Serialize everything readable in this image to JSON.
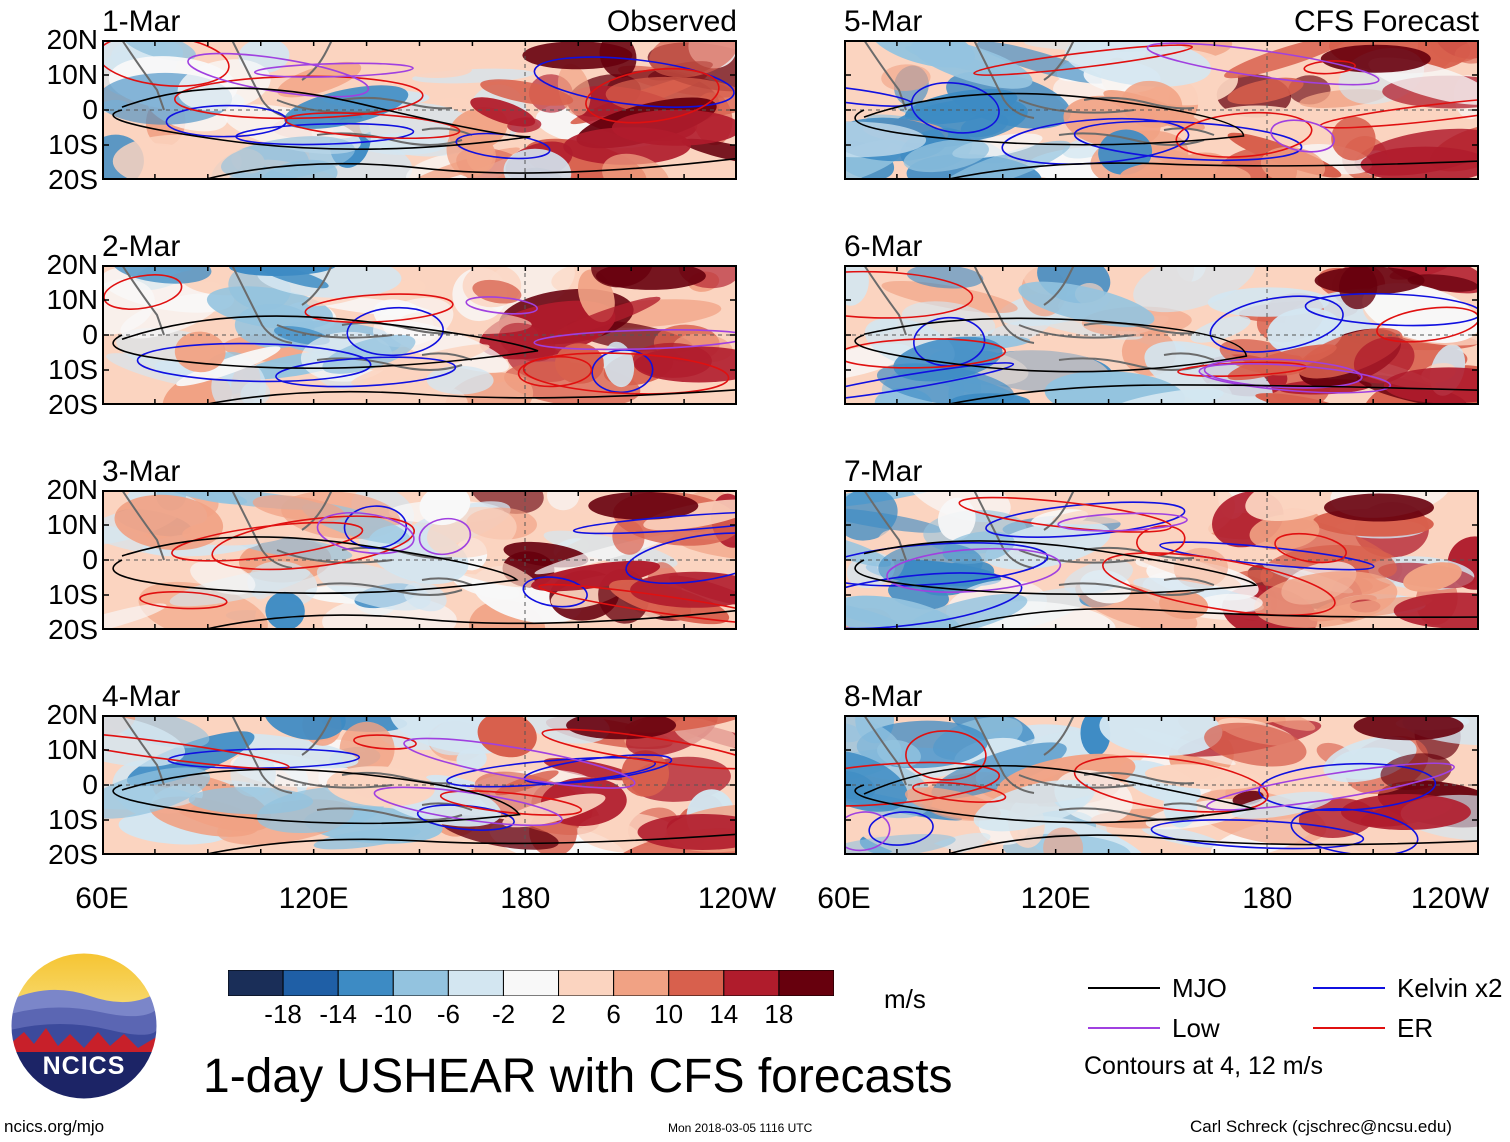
{
  "panels": [
    {
      "date": "1-Mar",
      "corner": "Observed",
      "col": 0,
      "row": 0,
      "seed": 11
    },
    {
      "date": "2-Mar",
      "corner": "",
      "col": 0,
      "row": 1,
      "seed": 23
    },
    {
      "date": "3-Mar",
      "corner": "",
      "col": 0,
      "row": 2,
      "seed": 37
    },
    {
      "date": "4-Mar",
      "corner": "",
      "col": 0,
      "row": 3,
      "seed": 41
    },
    {
      "date": "5-Mar",
      "corner": "CFS Forecast",
      "col": 1,
      "row": 0,
      "seed": 53
    },
    {
      "date": "6-Mar",
      "corner": "",
      "col": 1,
      "row": 1,
      "seed": 67
    },
    {
      "date": "7-Mar",
      "corner": "",
      "col": 1,
      "row": 2,
      "seed": 71
    },
    {
      "date": "8-Mar",
      "corner": "",
      "col": 1,
      "row": 3,
      "seed": 89
    }
  ],
  "lat_labels": [
    "20N",
    "10N",
    "0",
    "10S",
    "20S"
  ],
  "lon_labels": [
    "60E",
    "120E",
    "180",
    "120W"
  ],
  "colorbar": {
    "colors": [
      "#1a2e58",
      "#1f5fa6",
      "#3d8bc4",
      "#93c3df",
      "#d3e6f1",
      "#f8f8f8",
      "#fbd4c0",
      "#f1a284",
      "#d8604d",
      "#b01c2c",
      "#67000d"
    ],
    "ticks": [
      "-18",
      "-14",
      "-10",
      "-6",
      "-2",
      "2",
      "6",
      "10",
      "14",
      "18"
    ],
    "unit": "m/s"
  },
  "legend": {
    "items": [
      {
        "label": "MJO",
        "color": "#000000"
      },
      {
        "label": "Low",
        "color": "#a040e0"
      },
      {
        "label": "Kelvin x2",
        "color": "#1010e0"
      },
      {
        "label": "ER",
        "color": "#e01010"
      }
    ],
    "contours_note": "Contours at 4, 12 m/s"
  },
  "logo": {
    "text": "NCICS"
  },
  "title": "1-day USHEAR with CFS forecasts",
  "footer": {
    "url": "ncics.org/mjo",
    "timestamp": "Mon 2018-03-05 1116 UTC",
    "credit": "Carl Schreck (cjschrec@ncsu.edu)"
  }
}
